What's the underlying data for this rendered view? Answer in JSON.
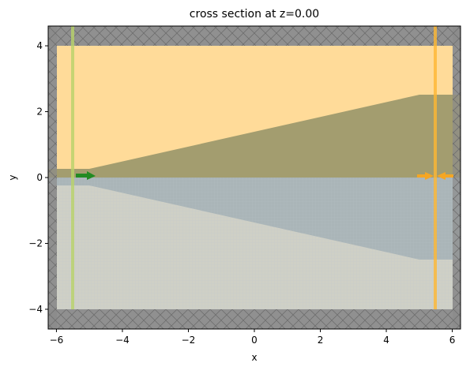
{
  "chart_data": {
    "type": "structure",
    "title": "cross section at z=0.00",
    "x_label": "x",
    "y_label": "y",
    "xlim": [
      -6.25,
      6.25
    ],
    "ylim": [
      -4.6,
      4.6
    ],
    "xticks": [
      {
        "value": -6,
        "label": "−6"
      },
      {
        "value": -4,
        "label": "−4"
      },
      {
        "value": -2,
        "label": "−2"
      },
      0,
      2,
      4,
      6
    ],
    "yticks": [
      {
        "value": -4,
        "label": "−4"
      },
      {
        "value": -2,
        "label": "−2"
      },
      0,
      2,
      4
    ]
  }
}
